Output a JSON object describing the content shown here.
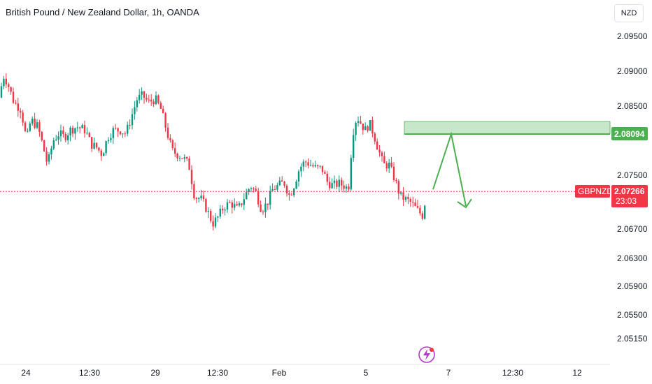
{
  "header": {
    "title": "British Pound / New Zealand Dollar, 1h, OANDA",
    "currency_button": "NZD"
  },
  "chart_data": {
    "type": "candlestick",
    "symbol": "GBPNZD",
    "interval": "1h",
    "source": "OANDA",
    "currency": "NZD",
    "y_ticks": [
      "2.09500",
      "2.09000",
      "2.08500",
      "2.08094",
      "2.07500",
      "2.06700",
      "2.06300",
      "2.05900",
      "2.05500",
      "2.05150"
    ],
    "x_ticks": [
      "24",
      "12:30",
      "29",
      "12:30",
      "Feb",
      "5",
      "7",
      "12:30",
      "12"
    ],
    "last_price": "2.07266",
    "last_price_label": "GBPNZD",
    "countdown": "23:03",
    "level_price": "2.08094",
    "colors": {
      "up": "#089981",
      "down": "#f23645",
      "level_zone": "#c8e6c9",
      "level_line": "#4caf50",
      "projection_arrow": "#4caf50",
      "price_line": "#f23645"
    },
    "annotations": [
      {
        "type": "zone",
        "price": 2.08094
      },
      {
        "type": "projection",
        "path": [
          2.07266,
          2.08094,
          2.07266
        ]
      }
    ]
  }
}
